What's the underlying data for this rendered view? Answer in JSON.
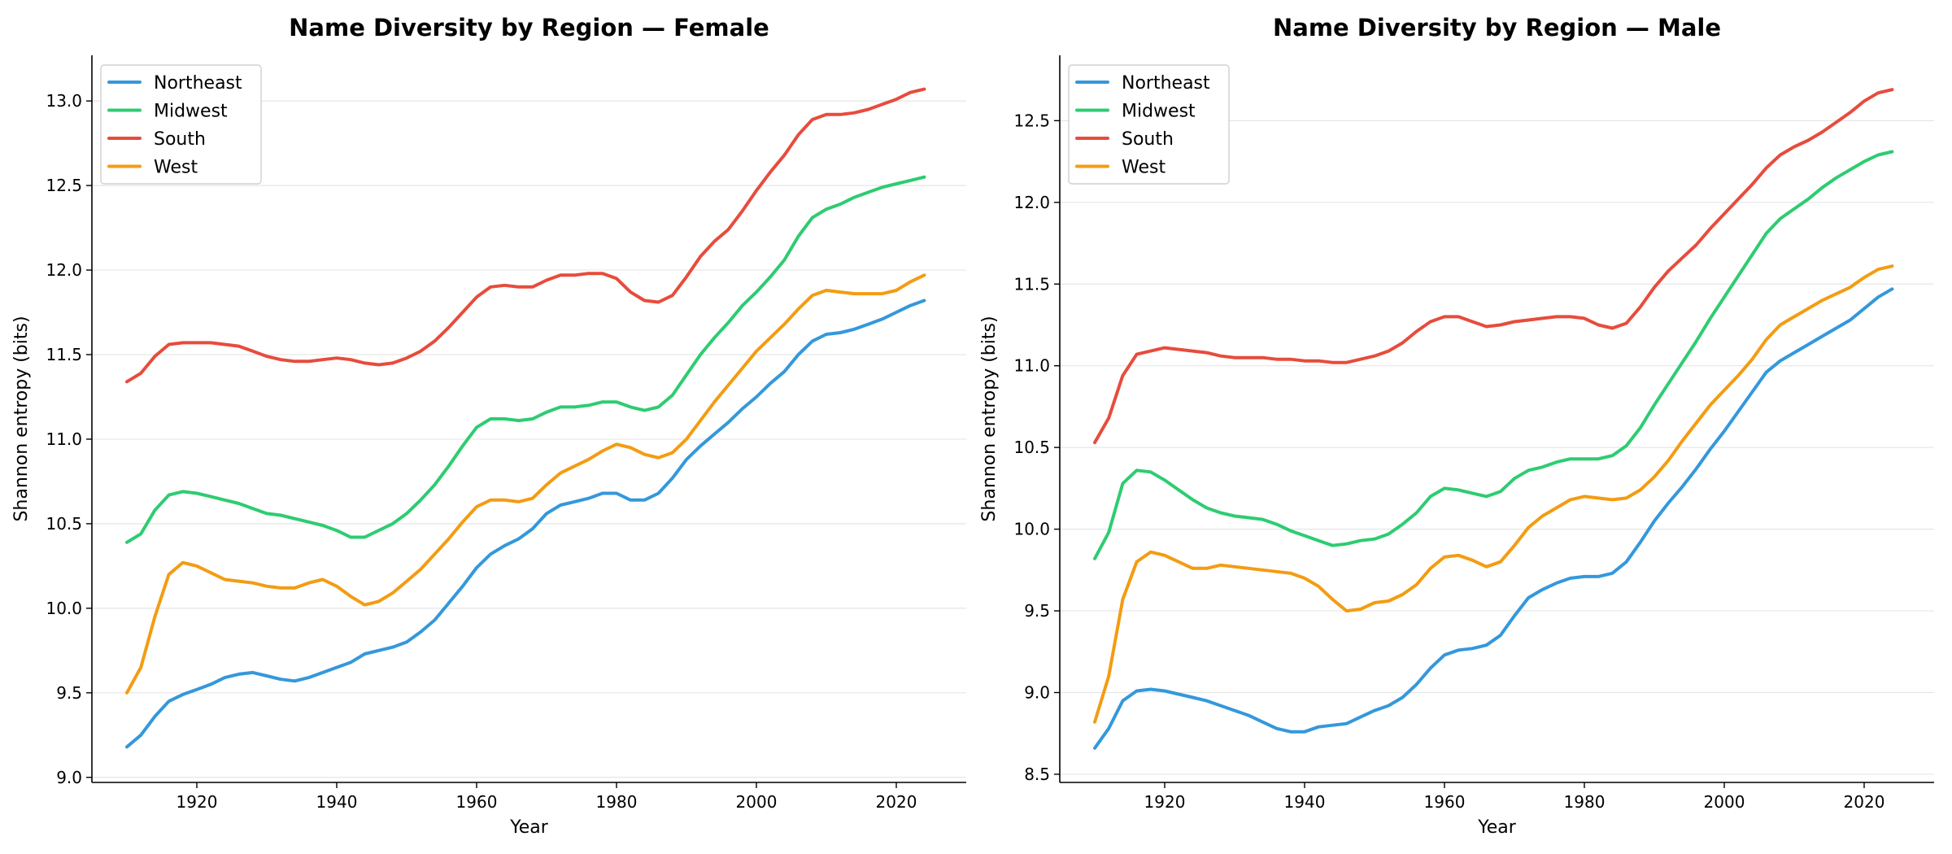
{
  "chart_data": [
    {
      "type": "line",
      "title": "Name Diversity by Region — Female",
      "xlabel": "Year",
      "ylabel": "Shannon entropy (bits)",
      "xlim": [
        1905,
        2030
      ],
      "ylim": [
        8.97,
        13.27
      ],
      "xticks": [
        1920,
        1940,
        1960,
        1980,
        2000,
        2020
      ],
      "yticks": [
        9.0,
        9.5,
        10.0,
        10.5,
        11.0,
        11.5,
        12.0,
        12.5,
        13.0
      ],
      "grid": "y",
      "legend_position": "top-left",
      "x": [
        1910,
        1912,
        1914,
        1916,
        1918,
        1920,
        1922,
        1924,
        1926,
        1928,
        1930,
        1932,
        1934,
        1936,
        1938,
        1940,
        1942,
        1944,
        1946,
        1948,
        1950,
        1952,
        1954,
        1956,
        1958,
        1960,
        1962,
        1964,
        1966,
        1968,
        1970,
        1972,
        1974,
        1976,
        1978,
        1980,
        1982,
        1984,
        1986,
        1988,
        1990,
        1992,
        1994,
        1996,
        1998,
        2000,
        2002,
        2004,
        2006,
        2008,
        2010,
        2012,
        2014,
        2016,
        2018,
        2020,
        2022,
        2024
      ],
      "series": [
        {
          "name": "Northeast",
          "color": "#3498db",
          "values": [
            9.18,
            9.25,
            9.36,
            9.45,
            9.49,
            9.52,
            9.55,
            9.59,
            9.61,
            9.62,
            9.6,
            9.58,
            9.57,
            9.59,
            9.62,
            9.65,
            9.68,
            9.73,
            9.75,
            9.77,
            9.8,
            9.86,
            9.93,
            10.03,
            10.13,
            10.24,
            10.32,
            10.37,
            10.41,
            10.47,
            10.56,
            10.61,
            10.63,
            10.65,
            10.68,
            10.68,
            10.64,
            10.64,
            10.68,
            10.77,
            10.88,
            10.96,
            11.03,
            11.1,
            11.18,
            11.25,
            11.33,
            11.4,
            11.5,
            11.58,
            11.62,
            11.63,
            11.65,
            11.68,
            11.71,
            11.75,
            11.79,
            11.82
          ]
        },
        {
          "name": "Midwest",
          "color": "#2ecc71",
          "values": [
            10.39,
            10.44,
            10.58,
            10.67,
            10.69,
            10.68,
            10.66,
            10.64,
            10.62,
            10.59,
            10.56,
            10.55,
            10.53,
            10.51,
            10.49,
            10.46,
            10.42,
            10.42,
            10.46,
            10.5,
            10.56,
            10.64,
            10.73,
            10.84,
            10.96,
            11.07,
            11.12,
            11.12,
            11.11,
            11.12,
            11.16,
            11.19,
            11.19,
            11.2,
            11.22,
            11.22,
            11.19,
            11.17,
            11.19,
            11.26,
            11.38,
            11.5,
            11.6,
            11.69,
            11.79,
            11.87,
            11.96,
            12.06,
            12.2,
            12.31,
            12.36,
            12.39,
            12.43,
            12.46,
            12.49,
            12.51,
            12.53,
            12.55
          ]
        },
        {
          "name": "South",
          "color": "#e74c3c",
          "values": [
            11.34,
            11.39,
            11.49,
            11.56,
            11.57,
            11.57,
            11.57,
            11.56,
            11.55,
            11.52,
            11.49,
            11.47,
            11.46,
            11.46,
            11.47,
            11.48,
            11.47,
            11.45,
            11.44,
            11.45,
            11.48,
            11.52,
            11.58,
            11.66,
            11.75,
            11.84,
            11.9,
            11.91,
            11.9,
            11.9,
            11.94,
            11.97,
            11.97,
            11.98,
            11.98,
            11.95,
            11.87,
            11.82,
            11.81,
            11.85,
            11.96,
            12.08,
            12.17,
            12.24,
            12.35,
            12.47,
            12.58,
            12.68,
            12.8,
            12.89,
            12.92,
            12.92,
            12.93,
            12.95,
            12.98,
            13.01,
            13.05,
            13.07
          ]
        },
        {
          "name": "West",
          "color": "#f39c12",
          "values": [
            9.5,
            9.65,
            9.95,
            10.2,
            10.27,
            10.25,
            10.21,
            10.17,
            10.16,
            10.15,
            10.13,
            10.12,
            10.12,
            10.15,
            10.17,
            10.13,
            10.07,
            10.02,
            10.04,
            10.09,
            10.16,
            10.23,
            10.32,
            10.41,
            10.51,
            10.6,
            10.64,
            10.64,
            10.63,
            10.65,
            10.73,
            10.8,
            10.84,
            10.88,
            10.93,
            10.97,
            10.95,
            10.91,
            10.89,
            10.92,
            11.0,
            11.11,
            11.22,
            11.32,
            11.42,
            11.52,
            11.6,
            11.68,
            11.77,
            11.85,
            11.88,
            11.87,
            11.86,
            11.86,
            11.86,
            11.88,
            11.93,
            11.97
          ]
        }
      ]
    },
    {
      "type": "line",
      "title": "Name Diversity by Region — Male",
      "xlabel": "Year",
      "ylabel": "Shannon entropy (bits)",
      "xlim": [
        1905,
        2030
      ],
      "ylim": [
        8.45,
        12.9
      ],
      "xticks": [
        1920,
        1940,
        1960,
        1980,
        2000,
        2020
      ],
      "yticks": [
        8.5,
        9.0,
        9.5,
        10.0,
        10.5,
        11.0,
        11.5,
        12.0,
        12.5
      ],
      "grid": "y",
      "legend_position": "top-left",
      "x": [
        1910,
        1912,
        1914,
        1916,
        1918,
        1920,
        1922,
        1924,
        1926,
        1928,
        1930,
        1932,
        1934,
        1936,
        1938,
        1940,
        1942,
        1944,
        1946,
        1948,
        1950,
        1952,
        1954,
        1956,
        1958,
        1960,
        1962,
        1964,
        1966,
        1968,
        1970,
        1972,
        1974,
        1976,
        1978,
        1980,
        1982,
        1984,
        1986,
        1988,
        1990,
        1992,
        1994,
        1996,
        1998,
        2000,
        2002,
        2004,
        2006,
        2008,
        2010,
        2012,
        2014,
        2016,
        2018,
        2020,
        2022,
        2024
      ],
      "series": [
        {
          "name": "Northeast",
          "color": "#3498db",
          "values": [
            8.66,
            8.78,
            8.95,
            9.01,
            9.02,
            9.01,
            8.99,
            8.97,
            8.95,
            8.92,
            8.89,
            8.86,
            8.82,
            8.78,
            8.76,
            8.76,
            8.79,
            8.8,
            8.81,
            8.85,
            8.89,
            8.92,
            8.97,
            9.05,
            9.15,
            9.23,
            9.26,
            9.27,
            9.29,
            9.35,
            9.47,
            9.58,
            9.63,
            9.67,
            9.7,
            9.71,
            9.71,
            9.73,
            9.8,
            9.92,
            10.05,
            10.16,
            10.26,
            10.37,
            10.49,
            10.6,
            10.72,
            10.84,
            10.96,
            11.03,
            11.08,
            11.13,
            11.18,
            11.23,
            11.28,
            11.35,
            11.42,
            11.47
          ]
        },
        {
          "name": "Midwest",
          "color": "#2ecc71",
          "values": [
            9.82,
            9.98,
            10.28,
            10.36,
            10.35,
            10.3,
            10.24,
            10.18,
            10.13,
            10.1,
            10.08,
            10.07,
            10.06,
            10.03,
            9.99,
            9.96,
            9.93,
            9.9,
            9.91,
            9.93,
            9.94,
            9.97,
            10.03,
            10.1,
            10.2,
            10.25,
            10.24,
            10.22,
            10.2,
            10.23,
            10.31,
            10.36,
            10.38,
            10.41,
            10.43,
            10.43,
            10.43,
            10.45,
            10.51,
            10.62,
            10.76,
            10.89,
            11.02,
            11.15,
            11.29,
            11.42,
            11.55,
            11.68,
            11.81,
            11.9,
            11.96,
            12.02,
            12.09,
            12.15,
            12.2,
            12.25,
            12.29,
            12.31
          ]
        },
        {
          "name": "South",
          "color": "#e74c3c",
          "values": [
            10.53,
            10.68,
            10.94,
            11.07,
            11.09,
            11.11,
            11.1,
            11.09,
            11.08,
            11.06,
            11.05,
            11.05,
            11.05,
            11.04,
            11.04,
            11.03,
            11.03,
            11.02,
            11.02,
            11.04,
            11.06,
            11.09,
            11.14,
            11.21,
            11.27,
            11.3,
            11.3,
            11.27,
            11.24,
            11.25,
            11.27,
            11.28,
            11.29,
            11.3,
            11.3,
            11.29,
            11.25,
            11.23,
            11.26,
            11.36,
            11.48,
            11.58,
            11.66,
            11.74,
            11.84,
            11.93,
            12.02,
            12.11,
            12.21,
            12.29,
            12.34,
            12.38,
            12.43,
            12.49,
            12.55,
            12.62,
            12.67,
            12.69
          ]
        },
        {
          "name": "West",
          "color": "#f39c12",
          "values": [
            8.82,
            9.1,
            9.57,
            9.8,
            9.86,
            9.84,
            9.8,
            9.76,
            9.76,
            9.78,
            9.77,
            9.76,
            9.75,
            9.74,
            9.73,
            9.7,
            9.65,
            9.57,
            9.5,
            9.51,
            9.55,
            9.56,
            9.6,
            9.66,
            9.76,
            9.83,
            9.84,
            9.81,
            9.77,
            9.8,
            9.9,
            10.01,
            10.08,
            10.13,
            10.18,
            10.2,
            10.19,
            10.18,
            10.19,
            10.24,
            10.32,
            10.42,
            10.54,
            10.65,
            10.76,
            10.85,
            10.94,
            11.04,
            11.16,
            11.25,
            11.3,
            11.35,
            11.4,
            11.44,
            11.48,
            11.54,
            11.59,
            11.61
          ]
        }
      ]
    }
  ]
}
